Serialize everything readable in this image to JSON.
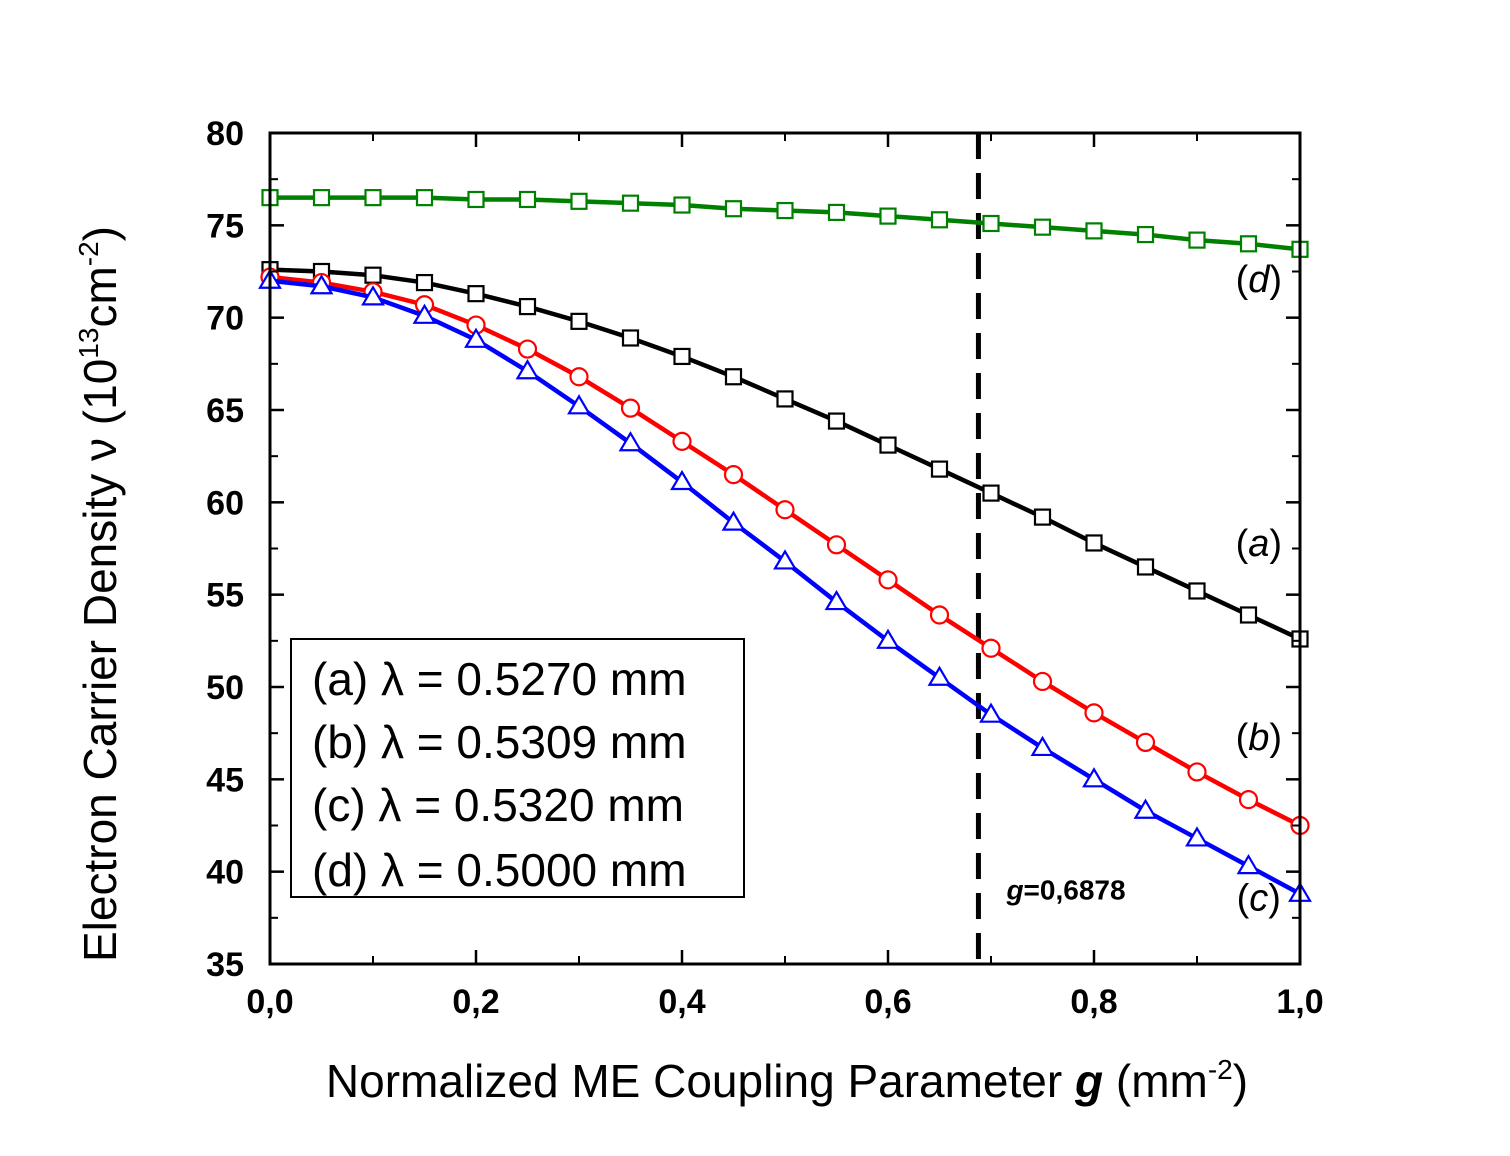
{
  "chart_data": {
    "type": "line",
    "xlabel": {
      "prefix": "Normalized ME Coupling Parameter ",
      "var": "g",
      "unit_open": " (mm",
      "unit_sup": "-2",
      "unit_close": ")"
    },
    "ylabel": {
      "prefix": "Electron Carrier Density ",
      "var": "ν",
      "unit_open": " (10",
      "unit_sup1": "13",
      "unit_mid": "cm",
      "unit_sup2": "-2",
      "unit_close": ")"
    },
    "xlim": [
      0.0,
      1.0
    ],
    "ylim": [
      35,
      80
    ],
    "x_ticks": [
      0.0,
      0.2,
      0.4,
      0.6,
      0.8,
      1.0
    ],
    "x_tick_labels": [
      "0,0",
      "0,2",
      "0,4",
      "0,6",
      "0,8",
      "1,0"
    ],
    "y_ticks": [
      35,
      40,
      45,
      50,
      55,
      60,
      65,
      70,
      75,
      80
    ],
    "y_tick_labels": [
      "35",
      "40",
      "45",
      "50",
      "55",
      "60",
      "65",
      "70",
      "75",
      "80"
    ],
    "x": [
      0.0,
      0.05,
      0.1,
      0.15,
      0.2,
      0.25,
      0.3,
      0.35,
      0.4,
      0.45,
      0.5,
      0.55,
      0.6,
      0.65,
      0.7,
      0.75,
      0.8,
      0.85,
      0.9,
      0.95,
      1.0
    ],
    "series": [
      {
        "name": "a",
        "label": "(a) λ = 0.5270 mm",
        "color": "#000000",
        "marker": "square",
        "values": [
          72.6,
          72.5,
          72.3,
          71.9,
          71.3,
          70.6,
          69.8,
          68.9,
          67.9,
          66.8,
          65.6,
          64.4,
          63.1,
          61.8,
          60.5,
          59.2,
          57.8,
          56.5,
          55.2,
          53.9,
          52.6
        ]
      },
      {
        "name": "b",
        "label": "(b) λ = 0.5309 mm",
        "color": "#ff0000",
        "marker": "circle",
        "values": [
          72.2,
          71.9,
          71.4,
          70.7,
          69.6,
          68.3,
          66.8,
          65.1,
          63.3,
          61.5,
          59.6,
          57.7,
          55.8,
          53.9,
          52.1,
          50.3,
          48.6,
          47.0,
          45.4,
          43.9,
          42.5
        ]
      },
      {
        "name": "c",
        "label": "(c) λ = 0.5320 mm",
        "color": "#0000ff",
        "marker": "triangle",
        "values": [
          72.0,
          71.7,
          71.1,
          70.1,
          68.8,
          67.1,
          65.2,
          63.2,
          61.1,
          58.9,
          56.8,
          54.6,
          52.5,
          50.5,
          48.5,
          46.7,
          45.0,
          43.3,
          41.8,
          40.3,
          38.8
        ]
      },
      {
        "name": "d",
        "label": "(d) λ = 0.5000 mm",
        "color": "#008000",
        "marker": "square",
        "values": [
          76.5,
          76.5,
          76.5,
          76.5,
          76.4,
          76.4,
          76.3,
          76.2,
          76.1,
          75.9,
          75.8,
          75.7,
          75.5,
          75.3,
          75.1,
          74.9,
          74.7,
          74.5,
          74.2,
          74.0,
          73.7
        ]
      }
    ],
    "curve_labels": [
      {
        "series": "d",
        "text": "d",
        "x": 0.96,
        "y": 71.4
      },
      {
        "series": "a",
        "text": "a",
        "x": 0.96,
        "y": 57.1
      },
      {
        "series": "b",
        "text": "b",
        "x": 0.96,
        "y": 46.6
      },
      {
        "series": "c",
        "text": "c",
        "x": 0.96,
        "y": 37.9
      }
    ],
    "vline": {
      "x": 0.6878,
      "style": "dashed"
    },
    "annotation": {
      "var": "g",
      "text": "=0,6878",
      "x": 0.715,
      "y": 38.5
    },
    "legend_position": "bottom-left"
  }
}
